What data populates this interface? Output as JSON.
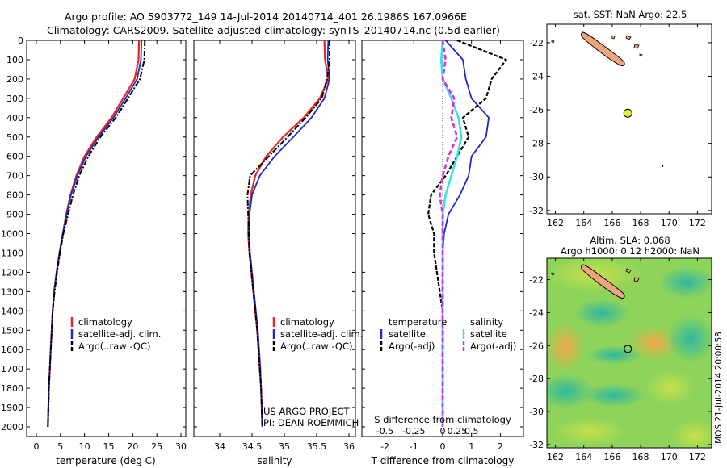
{
  "header": {
    "line1": "Argo profile: AO 5903772_149 14-Jul-2014 20140714_401 26.1986S 167.0966E",
    "line2": "Climatology: CARS2009. Satellite-adjusted climatology: synTS_20140714.nc (0.5d earlier)"
  },
  "colors": {
    "climatology": "#e8251e",
    "satellite": "#1f28c8",
    "argo": "#000000",
    "salinity_satellite": "#33e6e6",
    "salinity_argo": "#e22ad6",
    "land": "#f0a480",
    "marker": "#e0f03a"
  },
  "depth_axis": {
    "range": [
      0,
      2050
    ],
    "ticks": [
      0,
      100,
      200,
      300,
      400,
      500,
      600,
      700,
      800,
      900,
      1000,
      1100,
      1200,
      1300,
      1400,
      1500,
      1600,
      1700,
      1800,
      1900,
      2000
    ]
  },
  "panels": {
    "temperature": {
      "xlabel": "temperature (deg C)",
      "xlim": [
        -2,
        31
      ],
      "xticks": [
        0,
        5,
        10,
        15,
        20,
        25,
        30
      ],
      "legend": [
        "climatology",
        "satellite-adj. clim.",
        "Argo(..raw -QC)"
      ]
    },
    "salinity": {
      "xlabel": "salinity",
      "xlim": [
        33.6,
        36.1
      ],
      "xticks": [
        34,
        34.5,
        35,
        35.5,
        36
      ],
      "legend": [
        "climatology",
        "satellite-adj. clim.",
        "Argo(..raw -QC)"
      ],
      "credit1": "US ARGO PROJECT",
      "credit2": "PI: DEAN ROEMMICH"
    },
    "difference": {
      "xlabel": "T difference from climatology",
      "top_label": "S difference from climatology",
      "xlim": [
        -2.8,
        2.8
      ],
      "xticks": [
        -2,
        -1,
        0,
        1,
        2
      ],
      "sticks_pos": [
        -2.0,
        -1.0,
        0,
        0.5,
        1.0
      ],
      "sticks_lbl": [
        "-0.5",
        "-0.25",
        "0",
        "0.25",
        "0.5"
      ],
      "legend_temperature": {
        "title": "temperature",
        "items": [
          "satellite",
          "Argo(-adj)"
        ]
      },
      "legend_salinity": {
        "title": "salinity",
        "items": [
          "satellite",
          "Argo(-adj)"
        ]
      }
    }
  },
  "map_sst": {
    "title": "sat. SST: NaN Argo: 22.5",
    "lon_ticks": [
      162,
      164,
      166,
      168,
      170,
      172
    ],
    "lat_ticks": [
      -22,
      -24,
      -26,
      -28,
      -30,
      -32
    ],
    "lon_range": [
      161.4,
      173
    ],
    "lat_range": [
      -20.9,
      -32.2
    ],
    "argo_position": {
      "lon": 167.1,
      "lat": -26.2
    }
  },
  "map_sla": {
    "title1": "Altim. SLA: 0.068",
    "title2": "Argo h1000: 0.12 h2000: NaN",
    "lon_ticks": [
      162,
      164,
      166,
      168,
      170,
      172
    ],
    "lat_ticks": [
      -22,
      -24,
      -26,
      -28,
      -30,
      -32
    ],
    "lon_range": [
      161.4,
      173
    ],
    "lat_range": [
      -20.7,
      -32.2
    ],
    "argo_position": {
      "lon": 167.1,
      "lat": -26.2
    }
  },
  "footer_stamp": "IMOS 21-Jul-2014 20:00:58",
  "chart_data": [
    {
      "type": "line",
      "name": "temperature",
      "xlabel": "temperature (deg C)",
      "ylim": [
        0,
        2050
      ],
      "series": [
        {
          "name": "climatology",
          "x": [
            21.3,
            21.2,
            20.4,
            18.0,
            15.6,
            12.5,
            10.0,
            8.3,
            7.1,
            6.2,
            5.5,
            4.8,
            4.2,
            3.7,
            3.4,
            3.2,
            3.0,
            2.8,
            2.6,
            2.5,
            2.4
          ],
          "depth": [
            0,
            100,
            200,
            300,
            400,
            500,
            600,
            700,
            800,
            900,
            1000,
            1100,
            1200,
            1300,
            1400,
            1500,
            1600,
            1700,
            1800,
            1900,
            2000
          ]
        },
        {
          "name": "satellite-adj. clim.",
          "x": [
            21.8,
            21.7,
            20.9,
            18.5,
            16.0,
            12.9,
            10.3,
            8.5,
            7.2,
            6.3,
            5.5,
            4.8,
            4.2,
            3.7,
            3.4,
            3.2,
            3.0,
            2.8,
            2.6,
            2.5,
            2.4
          ],
          "depth": [
            0,
            100,
            200,
            300,
            400,
            500,
            600,
            700,
            800,
            900,
            1000,
            1100,
            1200,
            1300,
            1400,
            1500,
            1600,
            1700,
            1800,
            1900,
            2000
          ]
        },
        {
          "name": "Argo(..raw -QC)",
          "x": [
            22.5,
            22.4,
            21.5,
            19.0,
            16.5,
            13.3,
            10.8,
            8.9,
            7.6,
            6.6,
            5.6,
            4.9,
            4.3,
            3.8,
            3.4,
            3.2,
            3.0,
            2.8,
            2.6,
            2.5,
            2.4
          ],
          "depth": [
            0,
            100,
            200,
            300,
            400,
            500,
            600,
            700,
            800,
            900,
            1000,
            1100,
            1200,
            1300,
            1400,
            1500,
            1600,
            1700,
            1800,
            1900,
            2000
          ]
        }
      ]
    },
    {
      "type": "line",
      "name": "salinity",
      "xlabel": "salinity",
      "ylim": [
        0,
        2050
      ],
      "series": [
        {
          "name": "climatology",
          "x": [
            35.62,
            35.63,
            35.68,
            35.55,
            35.3,
            34.98,
            34.72,
            34.55,
            34.48,
            34.45,
            34.44,
            34.46,
            34.49,
            34.52,
            34.55,
            34.58,
            34.6,
            34.62,
            34.64,
            34.65,
            34.66
          ],
          "depth": [
            0,
            100,
            200,
            300,
            400,
            500,
            600,
            700,
            800,
            900,
            1000,
            1100,
            1200,
            1300,
            1400,
            1500,
            1600,
            1700,
            1800,
            1900,
            2000
          ]
        },
        {
          "name": "satellite-adj. clim.",
          "x": [
            35.68,
            35.67,
            35.7,
            35.62,
            35.42,
            35.14,
            34.85,
            34.62,
            34.5,
            34.46,
            34.45,
            34.47,
            34.5,
            34.53,
            34.56,
            34.59,
            34.61,
            34.63,
            34.64,
            34.65,
            34.66
          ],
          "depth": [
            0,
            100,
            200,
            300,
            400,
            500,
            600,
            700,
            800,
            900,
            1000,
            1100,
            1200,
            1300,
            1400,
            1500,
            1600,
            1700,
            1800,
            1900,
            2000
          ]
        },
        {
          "name": "Argo(..raw -QC)",
          "x": [
            35.7,
            35.7,
            35.66,
            35.58,
            35.33,
            35.05,
            34.76,
            34.47,
            34.43,
            34.44,
            34.45,
            34.46,
            34.49,
            34.52,
            34.55,
            34.58,
            34.6,
            34.62,
            34.64,
            34.65,
            34.66
          ],
          "depth": [
            0,
            100,
            200,
            300,
            400,
            500,
            600,
            700,
            800,
            900,
            1000,
            1100,
            1200,
            1300,
            1400,
            1500,
            1600,
            1700,
            1800,
            1900,
            2000
          ]
        }
      ]
    },
    {
      "type": "line",
      "name": "difference",
      "xlabel": "T difference from climatology",
      "ylim": [
        0,
        2050
      ],
      "series": [
        {
          "name": "temperature satellite",
          "x": [
            0.1,
            0.7,
            0.8,
            1.0,
            1.6,
            1.5,
            1.0,
            0.9,
            0.6,
            0.2,
            0.05,
            0.0,
            0.0,
            0.0,
            0.0,
            0.0,
            0.0,
            0.0,
            0.0,
            0.0,
            0.0
          ],
          "depth": [
            0,
            100,
            200,
            300,
            400,
            500,
            600,
            700,
            800,
            900,
            1000,
            1100,
            1200,
            1300,
            1400,
            1500,
            1600,
            1700,
            1800,
            1900,
            2000
          ]
        },
        {
          "name": "temperature Argo(-adj)",
          "x": [
            0.5,
            2.2,
            1.7,
            1.5,
            0.7,
            0.9,
            0.5,
            0.1,
            -0.4,
            -0.5,
            -0.3,
            -0.3,
            -0.2,
            -0.1,
            0.0,
            0.0,
            0.0,
            0.0,
            0.0,
            0.0,
            0.0
          ],
          "depth": [
            0,
            100,
            200,
            300,
            400,
            500,
            600,
            700,
            800,
            900,
            1000,
            1100,
            1200,
            1300,
            1400,
            1500,
            1600,
            1700,
            1800,
            1900,
            2000
          ]
        },
        {
          "name": "salinity satellite",
          "x": [
            0.0,
            -0.05,
            0.0,
            0.3,
            0.55,
            0.65,
            0.5,
            0.3,
            0.1,
            0.0,
            0.0,
            0.0,
            0.0,
            0.0,
            0.0,
            0.0,
            0.0,
            0.0,
            0.0,
            0.0,
            0.0
          ],
          "depth": [
            0,
            100,
            200,
            300,
            400,
            500,
            600,
            700,
            800,
            900,
            1000,
            1100,
            1200,
            1300,
            1400,
            1500,
            1600,
            1700,
            1800,
            1900,
            2000
          ]
        },
        {
          "name": "salinity Argo(-adj)",
          "x": [
            0.0,
            0.1,
            0.0,
            0.4,
            0.3,
            0.5,
            0.2,
            0.0,
            -0.1,
            0.0,
            0.0,
            0.0,
            0.0,
            0.0,
            0.0,
            0.0,
            0.0,
            0.0,
            0.0,
            0.0,
            0.0
          ],
          "depth": [
            0,
            100,
            200,
            300,
            400,
            500,
            600,
            700,
            800,
            900,
            1000,
            1100,
            1200,
            1300,
            1400,
            1500,
            1600,
            1700,
            1800,
            1900,
            2000
          ]
        }
      ]
    }
  ]
}
